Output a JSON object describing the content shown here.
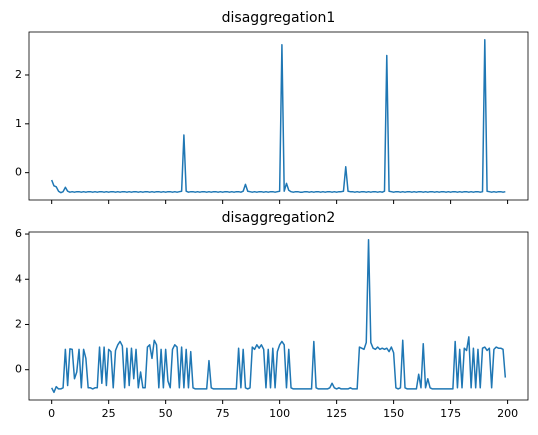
{
  "chart_data": [
    {
      "type": "line",
      "title": "disaggregation1",
      "color": "#1f77b4",
      "x": [
        0,
        1,
        2,
        3,
        4,
        5,
        6,
        7,
        8,
        9,
        10,
        11,
        12,
        13,
        14,
        15,
        16,
        17,
        18,
        19,
        20,
        21,
        22,
        23,
        24,
        25,
        26,
        27,
        28,
        29,
        30,
        31,
        32,
        33,
        34,
        35,
        36,
        37,
        38,
        39,
        40,
        41,
        42,
        43,
        44,
        45,
        46,
        47,
        48,
        49,
        50,
        51,
        52,
        53,
        54,
        55,
        56,
        57,
        58,
        59,
        60,
        61,
        62,
        63,
        64,
        65,
        66,
        67,
        68,
        69,
        70,
        71,
        72,
        73,
        74,
        75,
        76,
        77,
        78,
        79,
        80,
        81,
        82,
        83,
        84,
        85,
        86,
        87,
        88,
        89,
        90,
        91,
        92,
        93,
        94,
        95,
        96,
        97,
        98,
        99,
        100,
        101,
        102,
        103,
        104,
        105,
        106,
        107,
        108,
        109,
        110,
        111,
        112,
        113,
        114,
        115,
        116,
        117,
        118,
        119,
        120,
        121,
        122,
        123,
        124,
        125,
        126,
        127,
        128,
        129,
        130,
        131,
        132,
        133,
        134,
        135,
        136,
        137,
        138,
        139,
        140,
        141,
        142,
        143,
        144,
        145,
        146,
        147,
        148,
        149,
        150,
        151,
        152,
        153,
        154,
        155,
        156,
        157,
        158,
        159,
        160,
        161,
        162,
        163,
        164,
        165,
        166,
        167,
        168,
        169,
        170,
        171,
        172,
        173,
        174,
        175,
        176,
        177,
        178,
        179,
        180,
        181,
        182,
        183,
        184,
        185,
        186,
        187,
        188,
        189,
        190,
        191,
        192,
        193,
        194,
        195,
        196,
        197,
        198,
        199
      ],
      "values": [
        -0.15,
        -0.27,
        -0.29,
        -0.38,
        -0.41,
        -0.39,
        -0.3,
        -0.38,
        -0.4,
        -0.39,
        -0.4,
        -0.39,
        -0.39,
        -0.4,
        -0.39,
        -0.4,
        -0.39,
        -0.39,
        -0.4,
        -0.39,
        -0.4,
        -0.39,
        -0.39,
        -0.4,
        -0.39,
        -0.4,
        -0.39,
        -0.39,
        -0.4,
        -0.39,
        -0.4,
        -0.39,
        -0.39,
        -0.4,
        -0.39,
        -0.4,
        -0.39,
        -0.39,
        -0.4,
        -0.39,
        -0.4,
        -0.39,
        -0.39,
        -0.4,
        -0.39,
        -0.4,
        -0.39,
        -0.39,
        -0.4,
        -0.39,
        -0.4,
        -0.39,
        -0.39,
        -0.4,
        -0.39,
        -0.4,
        -0.39,
        -0.38,
        0.77,
        -0.38,
        -0.4,
        -0.39,
        -0.39,
        -0.4,
        -0.39,
        -0.4,
        -0.39,
        -0.39,
        -0.4,
        -0.39,
        -0.4,
        -0.39,
        -0.39,
        -0.4,
        -0.39,
        -0.4,
        -0.39,
        -0.39,
        -0.4,
        -0.39,
        -0.4,
        -0.39,
        -0.39,
        -0.4,
        -0.38,
        -0.24,
        -0.38,
        -0.39,
        -0.4,
        -0.39,
        -0.4,
        -0.39,
        -0.39,
        -0.4,
        -0.39,
        -0.4,
        -0.39,
        -0.39,
        -0.4,
        -0.39,
        -0.38,
        2.62,
        -0.38,
        -0.22,
        -0.36,
        -0.39,
        -0.4,
        -0.39,
        -0.39,
        -0.4,
        -0.4,
        -0.39,
        -0.39,
        -0.4,
        -0.39,
        -0.4,
        -0.39,
        -0.39,
        -0.4,
        -0.39,
        -0.4,
        -0.39,
        -0.39,
        -0.4,
        -0.39,
        -0.4,
        -0.39,
        -0.39,
        -0.38,
        0.12,
        -0.38,
        -0.39,
        -0.39,
        -0.4,
        -0.39,
        -0.4,
        -0.39,
        -0.39,
        -0.4,
        -0.39,
        -0.4,
        -0.39,
        -0.39,
        -0.4,
        -0.39,
        -0.4,
        -0.38,
        2.4,
        -0.38,
        -0.39,
        -0.4,
        -0.39,
        -0.39,
        -0.4,
        -0.39,
        -0.4,
        -0.39,
        -0.39,
        -0.4,
        -0.39,
        -0.4,
        -0.39,
        -0.39,
        -0.4,
        -0.39,
        -0.4,
        -0.39,
        -0.39,
        -0.4,
        -0.39,
        -0.4,
        -0.39,
        -0.39,
        -0.4,
        -0.39,
        -0.4,
        -0.39,
        -0.39,
        -0.4,
        -0.39,
        -0.4,
        -0.39,
        -0.39,
        -0.4,
        -0.39,
        -0.4,
        -0.39,
        -0.39,
        -0.4,
        -0.39,
        2.72,
        -0.38,
        -0.39,
        -0.4,
        -0.39,
        -0.4,
        -0.39,
        -0.39,
        -0.4,
        -0.39
      ],
      "xlim": [
        -9.95,
        208.95
      ],
      "xticks": [
        0,
        25,
        50,
        75,
        100,
        125,
        150,
        175,
        200
      ],
      "ylim": [
        -0.56,
        2.88
      ],
      "yticks": [
        0,
        1,
        2
      ]
    },
    {
      "type": "line",
      "title": "disaggregation2",
      "color": "#1f77b4",
      "x": [
        0,
        1,
        2,
        3,
        4,
        5,
        6,
        7,
        8,
        9,
        10,
        11,
        12,
        13,
        14,
        15,
        16,
        17,
        18,
        19,
        20,
        21,
        22,
        23,
        24,
        25,
        26,
        27,
        28,
        29,
        30,
        31,
        32,
        33,
        34,
        35,
        36,
        37,
        38,
        39,
        40,
        41,
        42,
        43,
        44,
        45,
        46,
        47,
        48,
        49,
        50,
        51,
        52,
        53,
        54,
        55,
        56,
        57,
        58,
        59,
        60,
        61,
        62,
        63,
        64,
        65,
        66,
        67,
        68,
        69,
        70,
        71,
        72,
        73,
        74,
        75,
        76,
        77,
        78,
        79,
        80,
        81,
        82,
        83,
        84,
        85,
        86,
        87,
        88,
        89,
        90,
        91,
        92,
        93,
        94,
        95,
        96,
        97,
        98,
        99,
        100,
        101,
        102,
        103,
        104,
        105,
        106,
        107,
        108,
        109,
        110,
        111,
        112,
        113,
        114,
        115,
        116,
        117,
        118,
        119,
        120,
        121,
        122,
        123,
        124,
        125,
        126,
        127,
        128,
        129,
        130,
        131,
        132,
        133,
        134,
        135,
        136,
        137,
        138,
        139,
        140,
        141,
        142,
        143,
        144,
        145,
        146,
        147,
        148,
        149,
        150,
        151,
        152,
        153,
        154,
        155,
        156,
        157,
        158,
        159,
        160,
        161,
        162,
        163,
        164,
        165,
        166,
        167,
        168,
        169,
        170,
        171,
        172,
        173,
        174,
        175,
        176,
        177,
        178,
        179,
        180,
        181,
        182,
        183,
        184,
        185,
        186,
        187,
        188,
        189,
        190,
        191,
        192,
        193,
        194,
        195,
        196,
        197,
        198,
        199
      ],
      "values": [
        -0.8,
        -1.0,
        -0.75,
        -0.85,
        -0.85,
        -0.8,
        0.9,
        -0.7,
        0.92,
        0.9,
        -0.4,
        -0.1,
        0.9,
        -0.8,
        0.9,
        0.5,
        -0.8,
        -0.8,
        -0.85,
        -0.8,
        -0.8,
        1.0,
        -0.6,
        1.0,
        -0.7,
        0.9,
        0.8,
        -0.8,
        0.85,
        1.1,
        1.25,
        1.05,
        -0.8,
        0.95,
        -0.7,
        0.95,
        -0.4,
        0.9,
        -0.8,
        -0.1,
        -0.8,
        -0.8,
        1.0,
        1.1,
        0.5,
        1.3,
        1.1,
        -0.8,
        0.9,
        -0.8,
        0.9,
        -0.5,
        -0.8,
        0.9,
        1.1,
        1.0,
        -0.8,
        1.0,
        -0.8,
        0.9,
        -0.8,
        0.8,
        -0.8,
        -0.85,
        -0.85,
        -0.85,
        -0.85,
        -0.85,
        -0.85,
        0.4,
        -0.8,
        -0.85,
        -0.85,
        -0.85,
        -0.85,
        -0.85,
        -0.85,
        -0.85,
        -0.85,
        -0.85,
        -0.85,
        -0.85,
        0.95,
        -0.8,
        0.9,
        -0.8,
        -0.85,
        -0.8,
        1.0,
        0.9,
        1.1,
        0.95,
        1.1,
        0.9,
        -0.8,
        0.9,
        -0.8,
        0.95,
        -0.8,
        0.8,
        1.1,
        1.25,
        1.1,
        -0.8,
        0.9,
        -0.8,
        -0.85,
        -0.85,
        -0.85,
        -0.85,
        -0.85,
        -0.85,
        -0.85,
        -0.85,
        -0.85,
        1.25,
        -0.8,
        -0.85,
        -0.85,
        -0.85,
        -0.85,
        -0.85,
        -0.8,
        -0.6,
        -0.8,
        -0.85,
        -0.8,
        -0.85,
        -0.85,
        -0.85,
        -0.85,
        -0.8,
        -0.85,
        -0.85,
        -0.85,
        1.0,
        0.95,
        0.9,
        1.2,
        5.75,
        1.2,
        0.95,
        0.9,
        1.0,
        0.9,
        0.95,
        0.9,
        0.95,
        0.8,
        1.0,
        0.75,
        -0.8,
        -0.85,
        -0.8,
        1.3,
        -0.8,
        -0.85,
        -0.85,
        -0.85,
        -0.85,
        -0.85,
        -0.2,
        -0.8,
        1.15,
        -0.8,
        -0.4,
        -0.8,
        -0.85,
        -0.85,
        -0.85,
        -0.85,
        -0.85,
        -0.85,
        -0.85,
        -0.85,
        -0.85,
        -0.85,
        1.25,
        -0.8,
        0.9,
        -0.8,
        0.95,
        0.85,
        1.45,
        -0.8,
        0.95,
        -0.8,
        0.9,
        -0.8,
        0.95,
        1.0,
        0.85,
        0.95,
        -0.8,
        0.9,
        1.0,
        0.95,
        0.95,
        0.9,
        -0.35
      ],
      "xlim": [
        -9.95,
        208.95
      ],
      "xticks": [
        0,
        25,
        50,
        75,
        100,
        125,
        150,
        175,
        200
      ],
      "ylim": [
        -1.34,
        6.09
      ],
      "yticks": [
        0,
        2,
        4,
        6
      ]
    }
  ]
}
